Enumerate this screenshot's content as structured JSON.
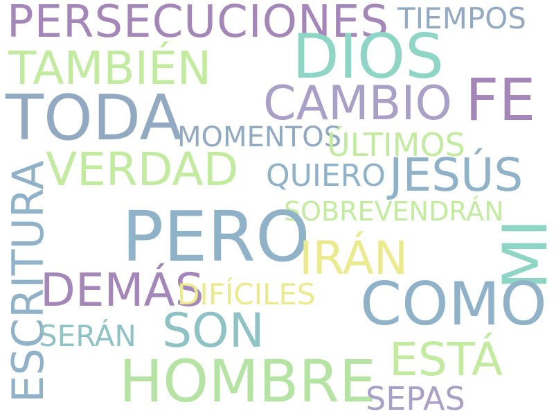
{
  "palette": {
    "purple": "#a487b8",
    "slate": "#92a9c2",
    "teal": "#8fd5c6",
    "light_green": "#c2eba0",
    "green": "#b5e3a3",
    "yellow": "#ebea8f",
    "gray_blue": "#8fb2c9"
  },
  "words": [
    {
      "text": "PERSECUCIONES",
      "color": "#a487b8"
    },
    {
      "text": "TIEMPOS",
      "color": "#92a9c2"
    },
    {
      "text": "DIOS",
      "color": "#8fd5c6"
    },
    {
      "text": "TAMBIÉN",
      "color": "#c2eba0"
    },
    {
      "text": "FE",
      "color": "#a487b8"
    },
    {
      "text": "TODA",
      "color": "#92a9c2"
    },
    {
      "text": "CAMBIO",
      "color": "#a8a0c6"
    },
    {
      "text": "MOMENTOS",
      "color": "#92a9c2"
    },
    {
      "text": "ÚLTIMOS",
      "color": "#c2eba0"
    },
    {
      "text": "VERDAD",
      "color": "#c2eba0"
    },
    {
      "text": "QUIERO",
      "color": "#8fb2c9"
    },
    {
      "text": "JESÚS",
      "color": "#8fb2c9"
    },
    {
      "text": "ESCRITURA",
      "color": "#8fb2c9"
    },
    {
      "text": "SOBREVENDRÁN",
      "color": "#c2eba0"
    },
    {
      "text": "PERO",
      "color": "#8fb2c9"
    },
    {
      "text": "MI",
      "color": "#8fd5c6"
    },
    {
      "text": "IRÁN",
      "color": "#ebea8f"
    },
    {
      "text": "DEMÁS",
      "color": "#a487b8"
    },
    {
      "text": "DIFÍCILES",
      "color": "#ebea8f"
    },
    {
      "text": "COMO",
      "color": "#8fb2c9"
    },
    {
      "text": "SON",
      "color": "#8fc2c4"
    },
    {
      "text": "SERÁN",
      "color": "#8fc2c4"
    },
    {
      "text": "ESTÁ",
      "color": "#c2eba0"
    },
    {
      "text": "HOMBRE",
      "color": "#b5e3a3"
    },
    {
      "text": "SEPAS",
      "color": "#a8a0c6"
    }
  ]
}
